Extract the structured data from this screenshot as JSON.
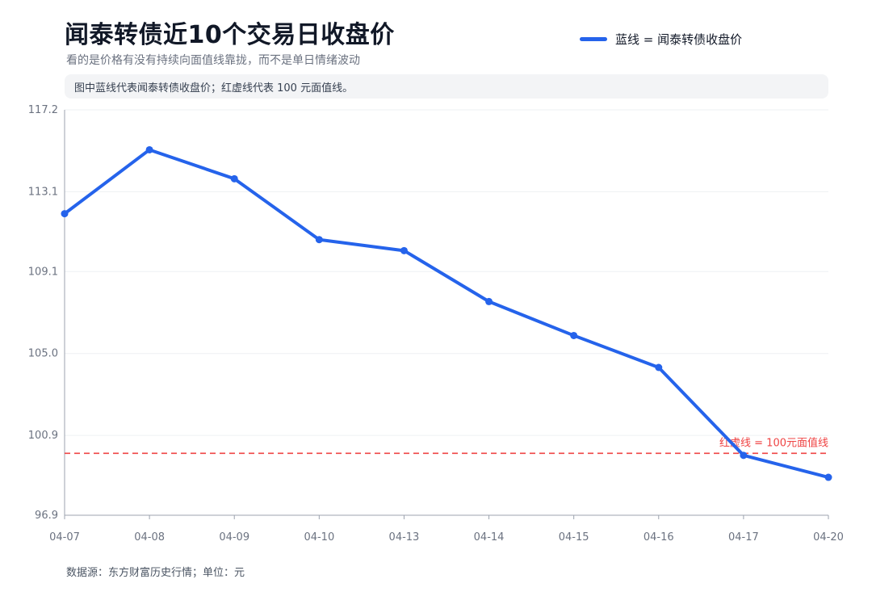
{
  "header": {
    "title": "闻泰转债近10个交易日收盘价",
    "subtitle": "看的是价格有没有持续向面值线靠拢，而不是单日情绪波动",
    "note": "图中蓝线代表闻泰转债收盘价；红虚线代表 100 元面值线。"
  },
  "legend": {
    "label": "蓝线 = 闻泰转债收盘价",
    "color": "#2563eb"
  },
  "footer": {
    "source": "数据源：东方财富历史行情；单位：元"
  },
  "chart_data": {
    "type": "line",
    "categories": [
      "04-07",
      "04-08",
      "04-09",
      "04-10",
      "04-13",
      "04-14",
      "04-15",
      "04-16",
      "04-17",
      "04-20"
    ],
    "series": [
      {
        "name": "蓝线 = 闻泰转债收盘价",
        "color": "#2563eb",
        "values": [
          112.0,
          115.2,
          113.75,
          110.7,
          110.15,
          107.6,
          105.9,
          104.3,
          99.9,
          98.8
        ]
      }
    ],
    "y_ticks": [
      "117.2",
      "113.1",
      "109.1",
      "105.0",
      "100.9",
      "96.9"
    ],
    "ylim": [
      96.9,
      117.2
    ],
    "reference_line": {
      "value": 100,
      "label": "红虚线 = 100元面值线",
      "color": "#ef4444"
    },
    "grid": true
  }
}
